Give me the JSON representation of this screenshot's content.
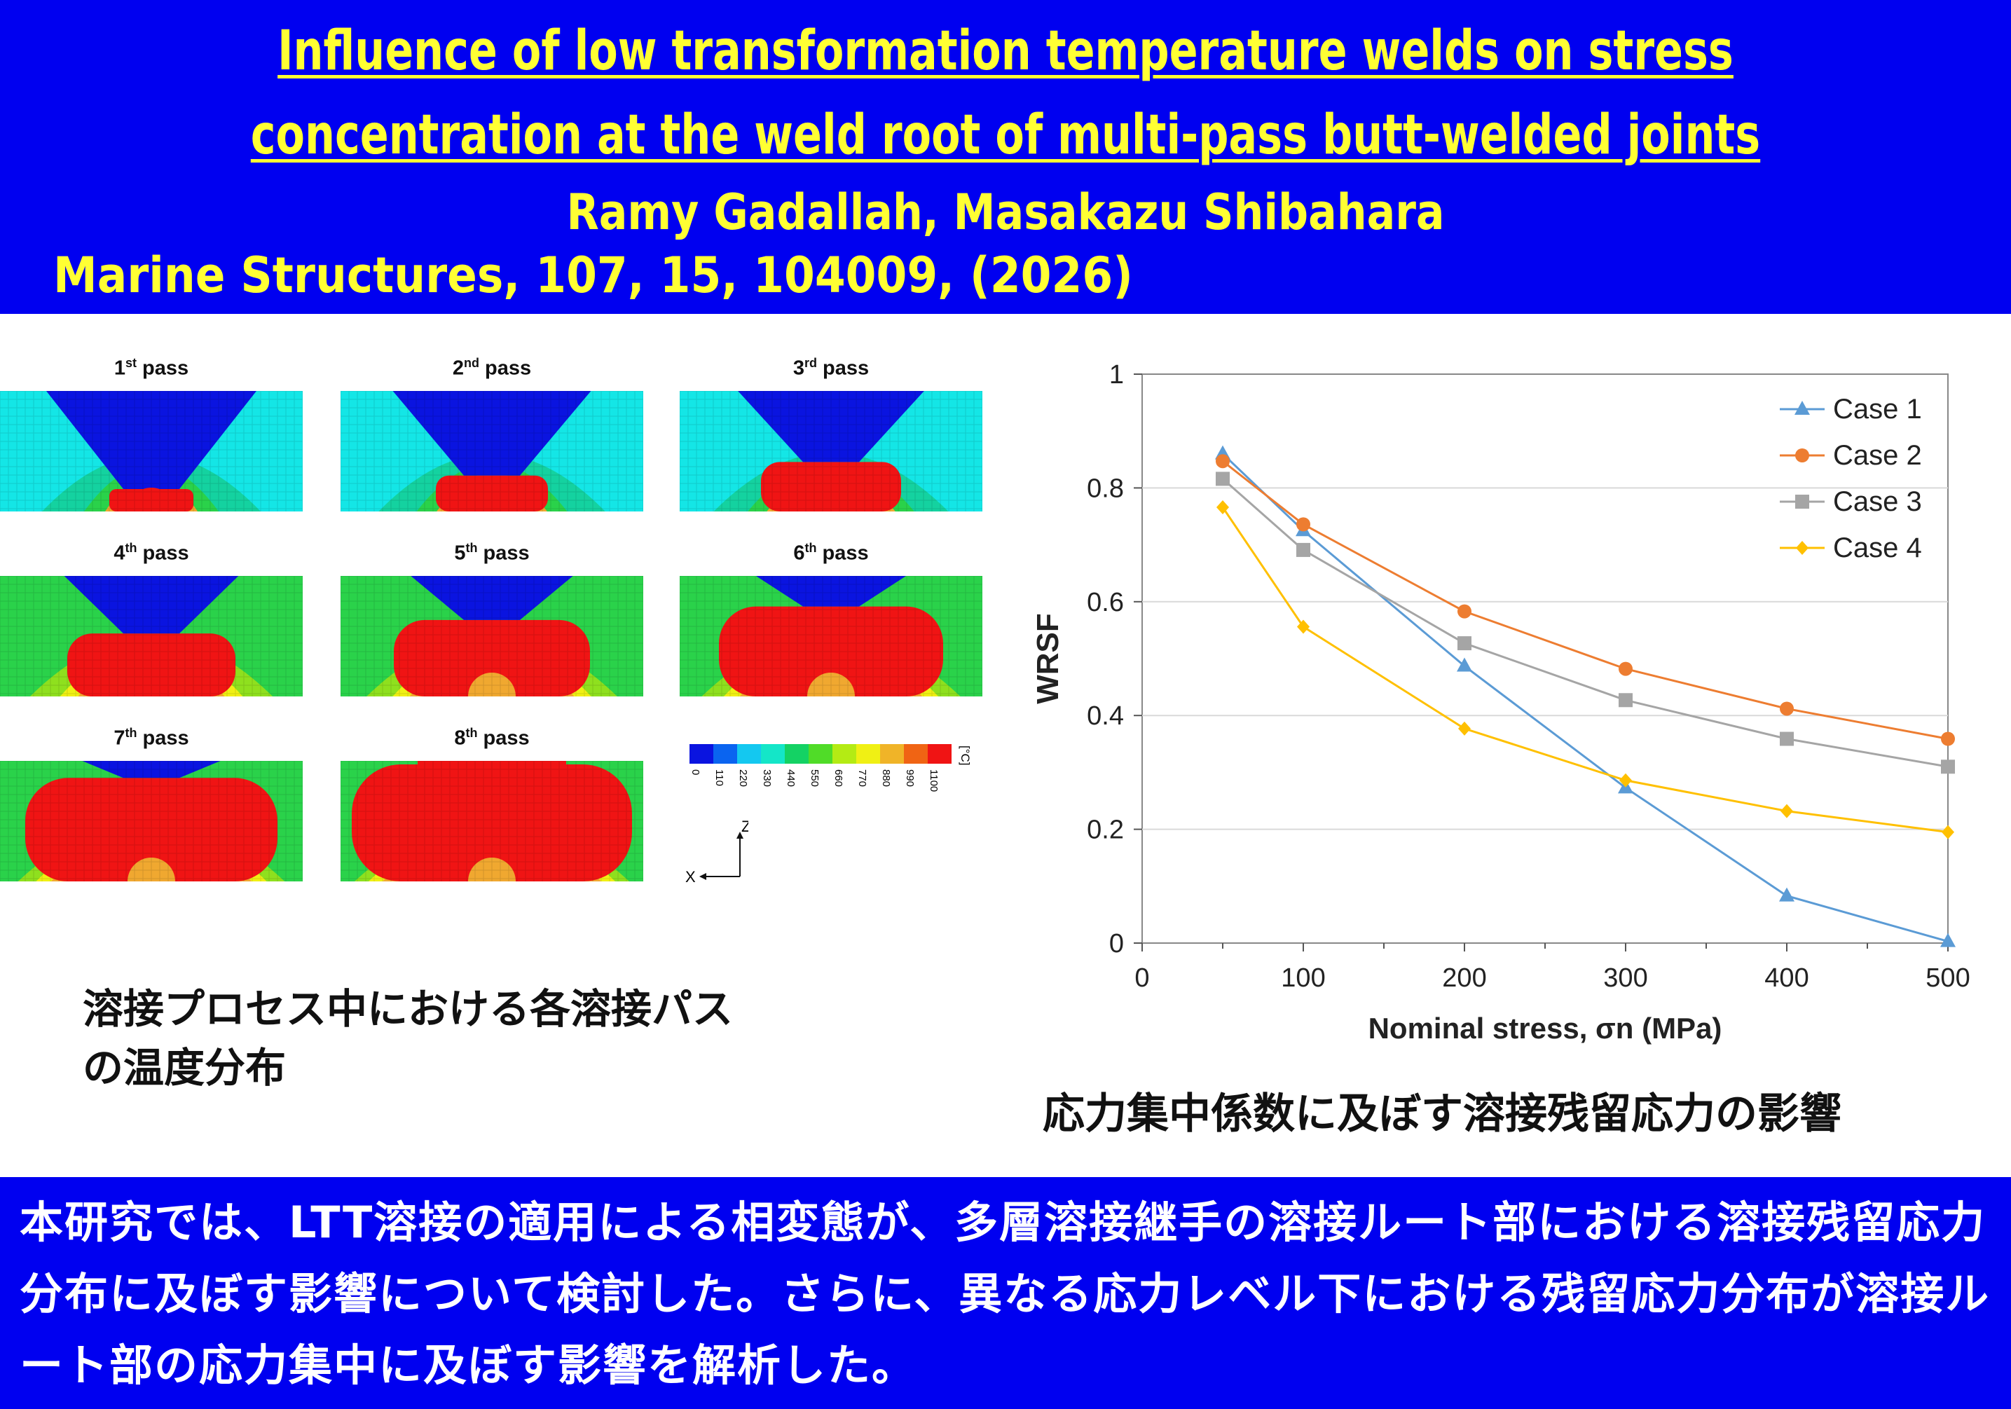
{
  "header": {
    "title_line1": "Influence of low transformation temperature welds on stress",
    "title_line2": "concentration at the weld root of multi-pass butt-welded joints",
    "authors": "Ramy Gadallah, Masakazu Shibahara",
    "journal": "Marine Structures, 107, 15, 104009, (2026)"
  },
  "figure_left": {
    "passes": [
      {
        "num": "1",
        "sup": "st",
        "word": "pass"
      },
      {
        "num": "2",
        "sup": "nd",
        "word": "pass"
      },
      {
        "num": "3",
        "sup": "rd",
        "word": "pass"
      },
      {
        "num": "4",
        "sup": "th",
        "word": "pass"
      },
      {
        "num": "5",
        "sup": "th",
        "word": "pass"
      },
      {
        "num": "6",
        "sup": "th",
        "word": "pass"
      },
      {
        "num": "7",
        "sup": "th",
        "word": "pass"
      },
      {
        "num": "8",
        "sup": "th",
        "word": "pass"
      }
    ],
    "colorbar": {
      "ticks": [
        "0",
        "110",
        "220",
        "330",
        "440",
        "550",
        "660",
        "770",
        "880",
        "990",
        "1100"
      ],
      "unit": "[°C]",
      "colors": [
        "#0a14e0",
        "#0a64f0",
        "#14c8f0",
        "#14e6c8",
        "#14d264",
        "#50dc28",
        "#b4eb14",
        "#f0f014",
        "#f0b428",
        "#f06414",
        "#f01414"
      ]
    },
    "axes": {
      "z": "Z",
      "x": "X"
    },
    "caption_line1": "溶接プロセス中における各溶接パス",
    "caption_line2": "の温度分布"
  },
  "chart_data": {
    "type": "line",
    "x": [
      50,
      100,
      200,
      300,
      400,
      500
    ],
    "series": [
      {
        "name": "Case 1",
        "values": [
          0.86,
          0.725,
          0.487,
          0.273,
          0.083,
          0.003
        ],
        "color": "#5b9bd5",
        "marker": "triangle"
      },
      {
        "name": "Case 2",
        "values": [
          0.847,
          0.736,
          0.583,
          0.482,
          0.412,
          0.359
        ],
        "color": "#ed7d31",
        "marker": "circle"
      },
      {
        "name": "Case 3",
        "values": [
          0.816,
          0.691,
          0.527,
          0.427,
          0.359,
          0.31
        ],
        "color": "#a5a5a5",
        "marker": "square"
      },
      {
        "name": "Case 4",
        "values": [
          0.766,
          0.556,
          0.377,
          0.286,
          0.232,
          0.195
        ],
        "color": "#ffc000",
        "marker": "diamond"
      }
    ],
    "xlabel": "Nominal stress, σn (MPa)",
    "ylabel": "WRSF",
    "xlim": [
      0,
      500
    ],
    "ylim": [
      0,
      1
    ],
    "x_ticks": [
      "0",
      "100",
      "200",
      "300",
      "400",
      "500"
    ],
    "y_ticks": [
      "0",
      "0.2",
      "0.4",
      "0.6",
      "0.8",
      "1"
    ],
    "grid": "horizontal",
    "legend": "top-right"
  },
  "figure_right": {
    "caption": "応力集中係数に及ぼす溶接残留応力の影響"
  },
  "footer": {
    "text": "本研究では、LTT溶接の適用による相変態が、多層溶接継手の溶接ルート部における溶接残留応力分布に及ぼす影響について検討した。さらに、異なる応力レベル下における残留応力分布が溶接ルート部の応力集中に及ぼす影響を解析した。"
  }
}
